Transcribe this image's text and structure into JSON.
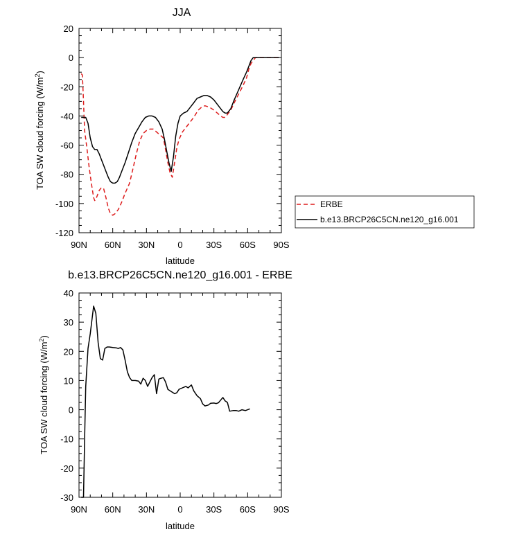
{
  "chart_data": [
    {
      "type": "line",
      "title": "JJA",
      "xlabel": "latitude",
      "ylabel_prefix": "TOA SW cloud forcing (W/m",
      "ylabel_sup": "2",
      "ylabel_suffix": ")",
      "xlim": [
        90,
        -90
      ],
      "ylim": [
        -120,
        20
      ],
      "xticks": [
        90,
        60,
        30,
        0,
        -30,
        -60,
        -90
      ],
      "xtick_labels": [
        "90N",
        "60N",
        "30N",
        "0",
        "30S",
        "60S",
        "90S"
      ],
      "yticks": [
        20,
        0,
        -20,
        -40,
        -60,
        -80,
        -100,
        -120
      ],
      "ytick_labels": [
        "20",
        "0",
        "-20",
        "-40",
        "-60",
        "-80",
        "-100",
        "-120"
      ],
      "legend_position": "right",
      "series": [
        {
          "name": "ERBE",
          "color": "#dd1c1c",
          "dash": "dashed",
          "points": [
            [
              88,
              -11
            ],
            [
              87,
              -12
            ],
            [
              86,
              -30
            ],
            [
              85,
              -50
            ],
            [
              83,
              -62
            ],
            [
              81,
              -75
            ],
            [
              79,
              -86
            ],
            [
              77,
              -96
            ],
            [
              76,
              -98
            ],
            [
              75,
              -97
            ],
            [
              74,
              -95
            ],
            [
              72,
              -91
            ],
            [
              70,
              -89
            ],
            [
              68,
              -90
            ],
            [
              66,
              -96
            ],
            [
              64,
              -103
            ],
            [
              62,
              -107
            ],
            [
              60,
              -108
            ],
            [
              58,
              -107
            ],
            [
              55,
              -104
            ],
            [
              52,
              -99
            ],
            [
              49,
              -93
            ],
            [
              45,
              -86
            ],
            [
              42,
              -76
            ],
            [
              39,
              -66
            ],
            [
              36,
              -57
            ],
            [
              33,
              -52
            ],
            [
              30,
              -50
            ],
            [
              27,
              -49
            ],
            [
              24,
              -49
            ],
            [
              21,
              -51
            ],
            [
              18,
              -53
            ],
            [
              15,
              -55
            ],
            [
              13,
              -63
            ],
            [
              11,
              -72
            ],
            [
              9,
              -79
            ],
            [
              7,
              -82
            ],
            [
              5,
              -72
            ],
            [
              3,
              -62
            ],
            [
              1,
              -56
            ],
            [
              -2,
              -51
            ],
            [
              -5,
              -48
            ],
            [
              -8,
              -45
            ],
            [
              -12,
              -41
            ],
            [
              -16,
              -36
            ],
            [
              -19,
              -34
            ],
            [
              -22,
              -33
            ],
            [
              -26,
              -34
            ],
            [
              -30,
              -36
            ],
            [
              -33,
              -38
            ],
            [
              -36,
              -40
            ],
            [
              -38,
              -41
            ],
            [
              -40,
              -41
            ],
            [
              -42,
              -39
            ],
            [
              -45,
              -36
            ],
            [
              -48,
              -31
            ],
            [
              -52,
              -25
            ],
            [
              -56,
              -19
            ],
            [
              -59,
              -14
            ],
            [
              -61,
              -8
            ],
            [
              -63,
              -4
            ],
            [
              -65,
              -2
            ],
            [
              -67,
              0
            ],
            [
              -70,
              0
            ],
            [
              -75,
              0
            ],
            [
              -80,
              0
            ],
            [
              -85,
              0
            ],
            [
              -88,
              0
            ]
          ]
        },
        {
          "name": "b.e13.BRCP26C5CN.ne120_g16.001",
          "color": "#000000",
          "dash": "solid",
          "points": [
            [
              88,
              -41
            ],
            [
              86,
              -41
            ],
            [
              84,
              -41
            ],
            [
              82,
              -45
            ],
            [
              80,
              -55
            ],
            [
              78,
              -61
            ],
            [
              76,
              -63
            ],
            [
              74,
              -63
            ],
            [
              72,
              -66
            ],
            [
              70,
              -70
            ],
            [
              68,
              -74
            ],
            [
              66,
              -78
            ],
            [
              64,
              -82
            ],
            [
              62,
              -85
            ],
            [
              60,
              -86
            ],
            [
              58,
              -86
            ],
            [
              56,
              -85
            ],
            [
              54,
              -82
            ],
            [
              52,
              -78
            ],
            [
              49,
              -72
            ],
            [
              46,
              -65
            ],
            [
              43,
              -58
            ],
            [
              40,
              -52
            ],
            [
              37,
              -48
            ],
            [
              34,
              -44
            ],
            [
              31,
              -41
            ],
            [
              28,
              -40
            ],
            [
              25,
              -40
            ],
            [
              22,
              -41
            ],
            [
              19,
              -44
            ],
            [
              16,
              -49
            ],
            [
              14,
              -56
            ],
            [
              12,
              -64
            ],
            [
              10,
              -72
            ],
            [
              8,
              -78
            ],
            [
              6,
              -68
            ],
            [
              4,
              -54
            ],
            [
              2,
              -45
            ],
            [
              0,
              -40
            ],
            [
              -3,
              -38
            ],
            [
              -6,
              -37
            ],
            [
              -9,
              -34
            ],
            [
              -12,
              -31
            ],
            [
              -15,
              -28
            ],
            [
              -18,
              -27
            ],
            [
              -21,
              -26
            ],
            [
              -24,
              -26
            ],
            [
              -27,
              -27
            ],
            [
              -30,
              -29
            ],
            [
              -33,
              -32
            ],
            [
              -36,
              -35
            ],
            [
              -38,
              -37
            ],
            [
              -40,
              -38
            ],
            [
              -42,
              -38
            ],
            [
              -45,
              -35
            ],
            [
              -48,
              -29
            ],
            [
              -52,
              -22
            ],
            [
              -56,
              -15
            ],
            [
              -59,
              -10
            ],
            [
              -61,
              -6
            ],
            [
              -63,
              -2
            ],
            [
              -65,
              0
            ],
            [
              -68,
              0
            ],
            [
              -72,
              0
            ],
            [
              -78,
              0
            ],
            [
              -85,
              0
            ],
            [
              -88,
              0
            ]
          ]
        }
      ]
    },
    {
      "type": "line",
      "title": "b.e13.BRCP26C5CN.ne120_g16.001 - ERBE",
      "xlabel": "latitude",
      "ylabel_prefix": "TOA SW cloud forcing (W/m",
      "ylabel_sup": "2",
      "ylabel_suffix": ")",
      "xlim": [
        90,
        -90
      ],
      "ylim": [
        -30,
        40
      ],
      "xticks": [
        90,
        60,
        30,
        0,
        -30,
        -60,
        -90
      ],
      "xtick_labels": [
        "90N",
        "60N",
        "30N",
        "0",
        "30S",
        "60S",
        "90S"
      ],
      "yticks": [
        40,
        30,
        20,
        10,
        0,
        -10,
        -20,
        -30
      ],
      "ytick_labels": [
        "40",
        "30",
        "20",
        "10",
        "0",
        "-10",
        "-20",
        "-30"
      ],
      "series": [
        {
          "color": "#000000",
          "dash": "solid",
          "points": [
            [
              88,
              -30
            ],
            [
              86,
              -30
            ],
            [
              85,
              -10
            ],
            [
              84,
              8
            ],
            [
              82,
              21
            ],
            [
              80,
              26
            ],
            [
              77,
              35.5
            ],
            [
              75,
              33
            ],
            [
              73,
              23
            ],
            [
              71,
              17.5
            ],
            [
              69,
              17
            ],
            [
              67,
              21
            ],
            [
              65,
              21.5
            ],
            [
              63,
              21.5
            ],
            [
              60,
              21.3
            ],
            [
              57,
              21.2
            ],
            [
              55,
              21
            ],
            [
              53,
              21.3
            ],
            [
              51,
              20.5
            ],
            [
              49,
              17
            ],
            [
              47,
              13
            ],
            [
              45,
              11
            ],
            [
              43,
              10
            ],
            [
              40,
              10
            ],
            [
              37,
              9.8
            ],
            [
              35,
              8.8
            ],
            [
              33,
              10.8
            ],
            [
              31,
              10
            ],
            [
              29,
              8
            ],
            [
              27,
              9.5
            ],
            [
              25,
              11
            ],
            [
              23,
              12
            ],
            [
              21,
              5.5
            ],
            [
              19,
              10.5
            ],
            [
              17,
              10.8
            ],
            [
              15,
              11
            ],
            [
              13,
              9.5
            ],
            [
              11,
              7
            ],
            [
              9,
              6.5
            ],
            [
              7,
              6
            ],
            [
              5,
              5.5
            ],
            [
              3,
              5.8
            ],
            [
              1,
              7
            ],
            [
              -2,
              7.5
            ],
            [
              -5,
              8
            ],
            [
              -7,
              7.5
            ],
            [
              -10,
              8.5
            ],
            [
              -12,
              6.5
            ],
            [
              -15,
              4.8
            ],
            [
              -18,
              3.8
            ],
            [
              -20,
              2
            ],
            [
              -22,
              1.3
            ],
            [
              -25,
              1.6
            ],
            [
              -27,
              2.2
            ],
            [
              -30,
              2.3
            ],
            [
              -32,
              2.1
            ],
            [
              -34,
              2.4
            ],
            [
              -36,
              3.3
            ],
            [
              -38,
              4.2
            ],
            [
              -40,
              3
            ],
            [
              -42,
              2.5
            ],
            [
              -44,
              -0.5
            ],
            [
              -47,
              -0.3
            ],
            [
              -50,
              -0.3
            ],
            [
              -52,
              -0.5
            ],
            [
              -55,
              0
            ],
            [
              -58,
              -0.3
            ],
            [
              -60,
              0
            ],
            [
              -62,
              0.3
            ]
          ]
        }
      ]
    }
  ]
}
